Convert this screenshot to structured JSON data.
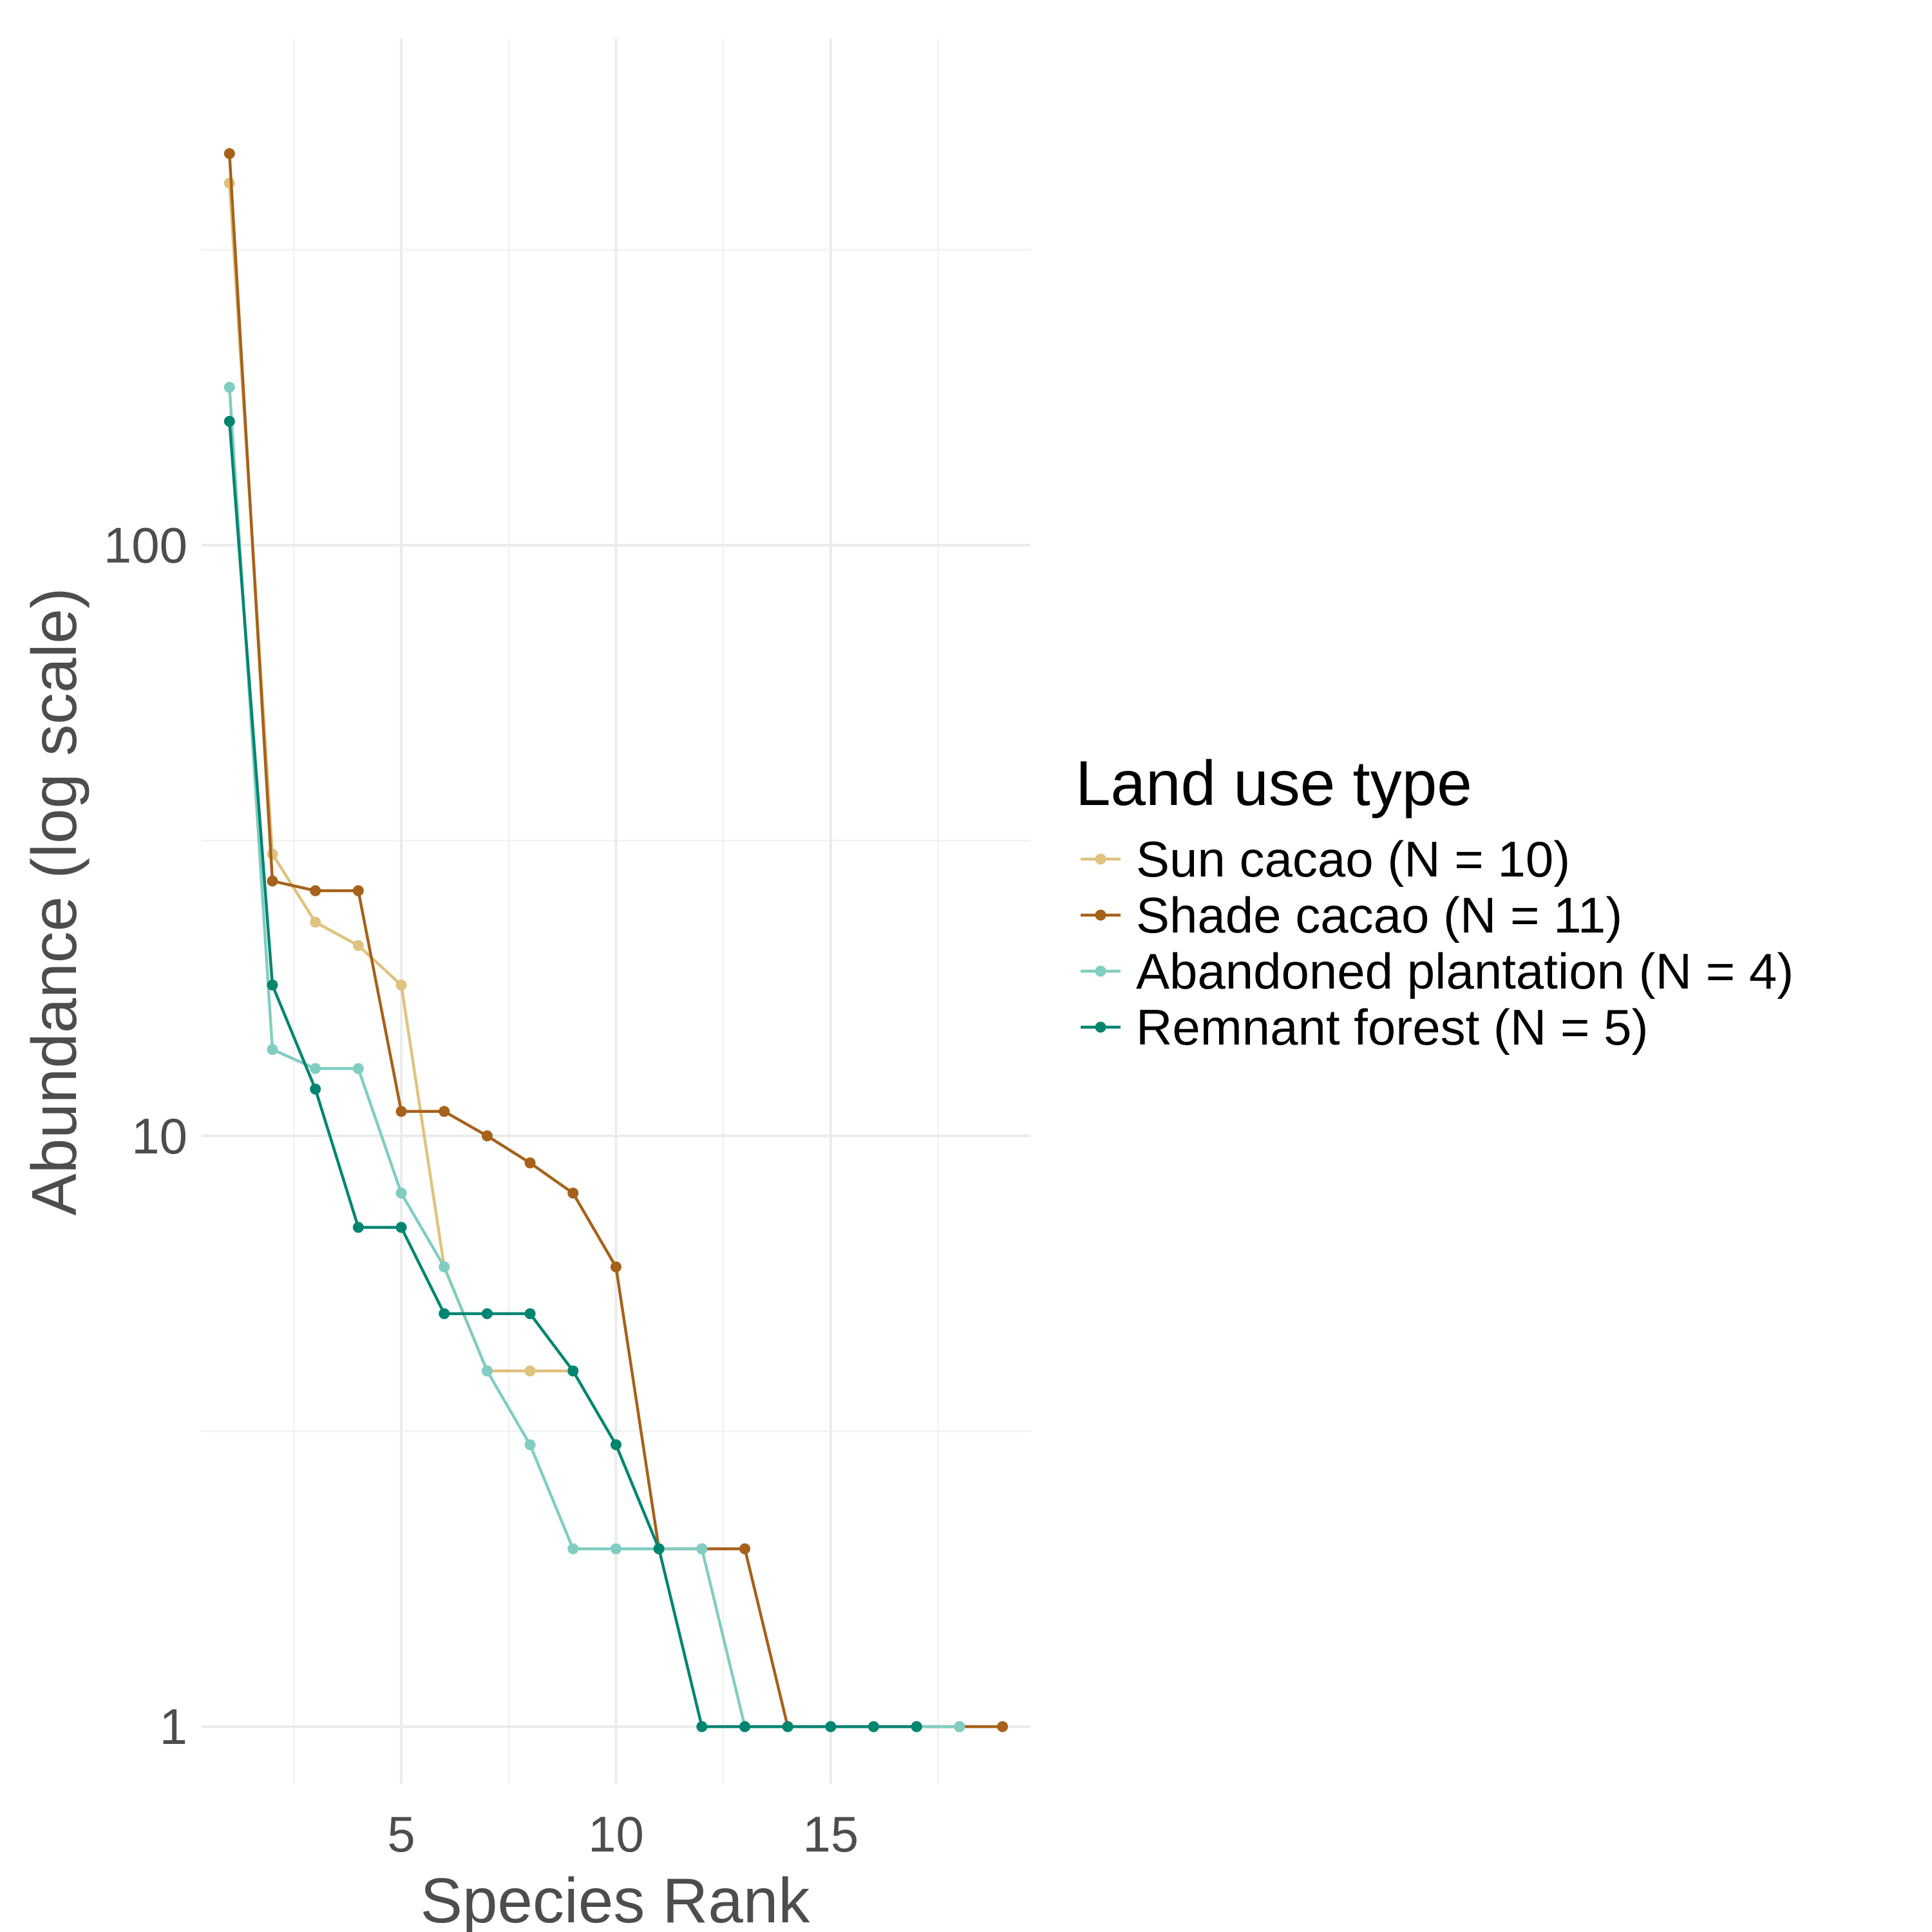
{
  "chart_data": {
    "type": "line",
    "title": "",
    "xlabel": "Species Rank",
    "ylabel": "Abundance (log scale)",
    "y_scale": "log10",
    "xlim": [
      0.35,
      19.65
    ],
    "ylim": [
      0.8,
      720
    ],
    "x_ticks": [
      5,
      10,
      15
    ],
    "x_tick_labels": [
      "5",
      "10",
      "15"
    ],
    "y_ticks": [
      1,
      10,
      100
    ],
    "y_tick_labels": [
      "1",
      "10",
      "100"
    ],
    "grid": true,
    "legend": {
      "title": "Land use type",
      "position": "right"
    },
    "series": [
      {
        "name": "Sun cacao (N = 10)",
        "color": "#dfc27d",
        "x": [
          1,
          2,
          3,
          4,
          5,
          6,
          7,
          8,
          9
        ],
        "y": [
          410,
          30,
          23,
          21,
          18,
          6,
          4,
          4,
          4
        ]
      },
      {
        "name": "Shade cacao (N = 11)",
        "color": "#a6611a",
        "x": [
          1,
          2,
          3,
          4,
          5,
          6,
          7,
          8,
          9,
          10,
          11,
          12,
          13,
          14,
          15,
          16,
          17,
          18,
          19
        ],
        "y": [
          460,
          27,
          26,
          26,
          11,
          11,
          10,
          9,
          8,
          6,
          2,
          2,
          2,
          1,
          1,
          1,
          1,
          1,
          1
        ]
      },
      {
        "name": "Abandoned plantation (N = 4)",
        "color": "#80cdc1",
        "x": [
          1,
          2,
          3,
          4,
          5,
          6,
          7,
          8,
          9,
          10,
          11,
          12,
          13,
          14,
          15,
          16,
          17,
          18
        ],
        "y": [
          185,
          14,
          13,
          13,
          8,
          6,
          4,
          3,
          2,
          2,
          2,
          2,
          1,
          1,
          1,
          1,
          1,
          1
        ]
      },
      {
        "name": "Remnant forest (N = 5)",
        "color": "#018571",
        "x": [
          1,
          2,
          3,
          4,
          5,
          6,
          7,
          8,
          9,
          10,
          11,
          12,
          13,
          14,
          15,
          16,
          17
        ],
        "y": [
          162,
          18,
          12,
          7,
          7,
          5,
          5,
          5,
          4,
          3,
          2,
          1,
          1,
          1,
          1,
          1,
          1
        ]
      }
    ]
  }
}
